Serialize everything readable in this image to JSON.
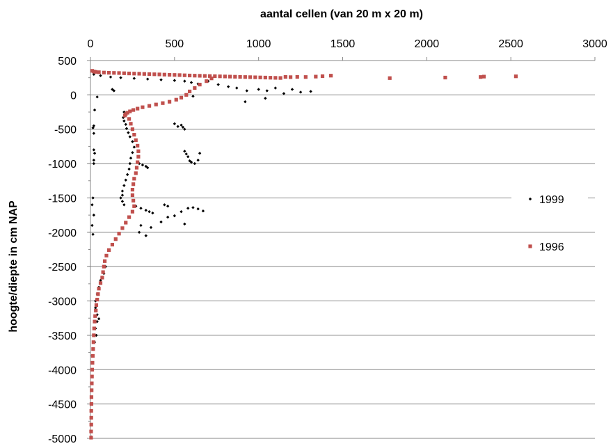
{
  "chart_data": {
    "type": "scatter",
    "title": "",
    "xlabel": "aantal cellen (van 20 m x 20 m)",
    "ylabel": "hoogte/diepte in cm NAP",
    "xlim": [
      0,
      3000
    ],
    "ylim": [
      -5000,
      500
    ],
    "x_ticks": [
      "0",
      "500",
      "1000",
      "1500",
      "2000",
      "2500",
      "3000"
    ],
    "y_ticks": [
      "500",
      "0",
      "-500",
      "-1000",
      "-1500",
      "-2000",
      "-2500",
      "-3000",
      "-3500",
      "-4000",
      "-4500",
      "-5000"
    ],
    "x_axis_position": "top",
    "grid": "horizontal",
    "legend_position": "right",
    "series": [
      {
        "name": "1999",
        "color": "#000000",
        "marker": "diamond",
        "points": [
          [
            20,
            300
          ],
          [
            60,
            280
          ],
          [
            120,
            260
          ],
          [
            180,
            250
          ],
          [
            260,
            240
          ],
          [
            340,
            230
          ],
          [
            420,
            220
          ],
          [
            500,
            210
          ],
          [
            560,
            200
          ],
          [
            600,
            180
          ],
          [
            640,
            160
          ],
          [
            700,
            200
          ],
          [
            760,
            150
          ],
          [
            820,
            120
          ],
          [
            870,
            100
          ],
          [
            930,
            60
          ],
          [
            1000,
            80
          ],
          [
            1050,
            60
          ],
          [
            1100,
            100
          ],
          [
            1150,
            20
          ],
          [
            1200,
            80
          ],
          [
            1250,
            40
          ],
          [
            1310,
            50
          ],
          [
            1040,
            -50
          ],
          [
            920,
            -100
          ],
          [
            610,
            -20
          ],
          [
            140,
            60
          ],
          [
            130,
            80
          ],
          [
            40,
            -30
          ],
          [
            25,
            -220
          ],
          [
            20,
            -450
          ],
          [
            15,
            -480
          ],
          [
            20,
            -560
          ],
          [
            20,
            -800
          ],
          [
            25,
            -850
          ],
          [
            20,
            -950
          ],
          [
            20,
            -1000
          ],
          [
            15,
            -1500
          ],
          [
            20,
            -1750
          ],
          [
            10,
            -1600
          ],
          [
            10,
            -1900
          ],
          [
            15,
            -2030
          ],
          [
            200,
            -250
          ],
          [
            210,
            -280
          ],
          [
            195,
            -330
          ],
          [
            200,
            -380
          ],
          [
            210,
            -430
          ],
          [
            215,
            -490
          ],
          [
            225,
            -550
          ],
          [
            235,
            -610
          ],
          [
            250,
            -680
          ],
          [
            260,
            -760
          ],
          [
            250,
            -840
          ],
          [
            240,
            -920
          ],
          [
            235,
            -1000
          ],
          [
            230,
            -1080
          ],
          [
            220,
            -1160
          ],
          [
            210,
            -1240
          ],
          [
            200,
            -1320
          ],
          [
            190,
            -1400
          ],
          [
            190,
            -1460
          ],
          [
            180,
            -1500
          ],
          [
            190,
            -1550
          ],
          [
            200,
            -1600
          ],
          [
            290,
            -1000
          ],
          [
            310,
            -1020
          ],
          [
            330,
            -1040
          ],
          [
            340,
            -1060
          ],
          [
            500,
            -420
          ],
          [
            520,
            -460
          ],
          [
            540,
            -440
          ],
          [
            550,
            -470
          ],
          [
            560,
            -500
          ],
          [
            560,
            -820
          ],
          [
            570,
            -860
          ],
          [
            580,
            -900
          ],
          [
            590,
            -960
          ],
          [
            600,
            -980
          ],
          [
            620,
            -1000
          ],
          [
            640,
            -950
          ],
          [
            650,
            -850
          ],
          [
            270,
            -1620
          ],
          [
            300,
            -1650
          ],
          [
            330,
            -1680
          ],
          [
            350,
            -1700
          ],
          [
            370,
            -1720
          ],
          [
            300,
            -1900
          ],
          [
            290,
            -2000
          ],
          [
            330,
            -2050
          ],
          [
            360,
            -1930
          ],
          [
            420,
            -1850
          ],
          [
            460,
            -1780
          ],
          [
            500,
            -1760
          ],
          [
            540,
            -1700
          ],
          [
            580,
            -1650
          ],
          [
            610,
            -1640
          ],
          [
            640,
            -1660
          ],
          [
            670,
            -1690
          ],
          [
            560,
            -1880
          ],
          [
            440,
            -1600
          ],
          [
            460,
            -1620
          ],
          [
            90,
            -2500
          ],
          [
            80,
            -2600
          ],
          [
            60,
            -2700
          ],
          [
            50,
            -2800
          ],
          [
            40,
            -2900
          ],
          [
            30,
            -3000
          ],
          [
            30,
            -3100
          ],
          [
            40,
            -3200
          ],
          [
            50,
            -3260
          ],
          [
            40,
            -3300
          ],
          [
            30,
            -3400
          ],
          [
            35,
            -3500
          ],
          [
            25,
            -3600
          ],
          [
            15,
            -3700
          ],
          [
            10,
            -3800
          ],
          [
            10,
            -4000
          ],
          [
            5,
            -4200
          ],
          [
            5,
            -4500
          ],
          [
            5,
            -4800
          ],
          [
            5,
            -4980
          ]
        ]
      },
      {
        "name": "1996",
        "color": "#C0504D",
        "marker": "square",
        "points": [
          [
            10,
            350
          ],
          [
            20,
            340
          ],
          [
            30,
            335
          ],
          [
            50,
            330
          ],
          [
            80,
            325
          ],
          [
            110,
            322
          ],
          [
            140,
            320
          ],
          [
            170,
            318
          ],
          [
            200,
            315
          ],
          [
            230,
            312
          ],
          [
            260,
            310
          ],
          [
            290,
            308
          ],
          [
            320,
            305
          ],
          [
            350,
            302
          ],
          [
            380,
            300
          ],
          [
            410,
            298
          ],
          [
            440,
            295
          ],
          [
            470,
            292
          ],
          [
            500,
            290
          ],
          [
            530,
            288
          ],
          [
            560,
            285
          ],
          [
            590,
            282
          ],
          [
            620,
            280
          ],
          [
            650,
            278
          ],
          [
            680,
            276
          ],
          [
            710,
            274
          ],
          [
            740,
            272
          ],
          [
            770,
            270
          ],
          [
            800,
            268
          ],
          [
            830,
            266
          ],
          [
            860,
            264
          ],
          [
            890,
            262
          ],
          [
            920,
            260
          ],
          [
            950,
            258
          ],
          [
            980,
            256
          ],
          [
            1010,
            254
          ],
          [
            1040,
            252
          ],
          [
            1070,
            250
          ],
          [
            1100,
            248
          ],
          [
            1130,
            246
          ],
          [
            1160,
            262
          ],
          [
            1190,
            258
          ],
          [
            1230,
            262
          ],
          [
            1280,
            260
          ],
          [
            1340,
            266
          ],
          [
            1380,
            272
          ],
          [
            1430,
            280
          ],
          [
            1780,
            244
          ],
          [
            2110,
            252
          ],
          [
            2320,
            260
          ],
          [
            2340,
            266
          ],
          [
            2530,
            270
          ],
          [
            720,
            240
          ],
          [
            690,
            200
          ],
          [
            650,
            150
          ],
          [
            620,
            100
          ],
          [
            590,
            50
          ],
          [
            570,
            0
          ],
          [
            540,
            -40
          ],
          [
            510,
            -70
          ],
          [
            470,
            -100
          ],
          [
            430,
            -120
          ],
          [
            390,
            -140
          ],
          [
            350,
            -160
          ],
          [
            310,
            -180
          ],
          [
            280,
            -200
          ],
          [
            255,
            -220
          ],
          [
            235,
            -240
          ],
          [
            220,
            -260
          ],
          [
            210,
            -280
          ],
          [
            205,
            -300
          ],
          [
            230,
            -350
          ],
          [
            240,
            -420
          ],
          [
            250,
            -500
          ],
          [
            260,
            -580
          ],
          [
            270,
            -660
          ],
          [
            280,
            -740
          ],
          [
            285,
            -820
          ],
          [
            285,
            -900
          ],
          [
            280,
            -980
          ],
          [
            275,
            -1060
          ],
          [
            270,
            -1140
          ],
          [
            260,
            -1220
          ],
          [
            255,
            -1300
          ],
          [
            250,
            -1380
          ],
          [
            250,
            -1460
          ],
          [
            255,
            -1540
          ],
          [
            260,
            -1620
          ],
          [
            250,
            -1700
          ],
          [
            230,
            -1780
          ],
          [
            210,
            -1860
          ],
          [
            190,
            -1940
          ],
          [
            170,
            -2020
          ],
          [
            150,
            -2100
          ],
          [
            130,
            -2180
          ],
          [
            110,
            -2260
          ],
          [
            95,
            -2340
          ],
          [
            85,
            -2420
          ],
          [
            80,
            -2500
          ],
          [
            75,
            -2580
          ],
          [
            70,
            -2660
          ],
          [
            60,
            -2740
          ],
          [
            50,
            -2820
          ],
          [
            45,
            -2900
          ],
          [
            40,
            -2980
          ],
          [
            35,
            -3060
          ],
          [
            32,
            -3140
          ],
          [
            28,
            -3220
          ],
          [
            25,
            -3300
          ],
          [
            22,
            -3400
          ],
          [
            20,
            -3500
          ],
          [
            18,
            -3600
          ],
          [
            16,
            -3700
          ],
          [
            14,
            -3800
          ],
          [
            12,
            -3900
          ],
          [
            10,
            -4000
          ],
          [
            9,
            -4100
          ],
          [
            8,
            -4200
          ],
          [
            7,
            -4300
          ],
          [
            6,
            -4400
          ],
          [
            6,
            -4500
          ],
          [
            5,
            -4600
          ],
          [
            5,
            -4700
          ],
          [
            5,
            -4800
          ],
          [
            4,
            -4900
          ],
          [
            4,
            -4990
          ]
        ]
      }
    ]
  }
}
